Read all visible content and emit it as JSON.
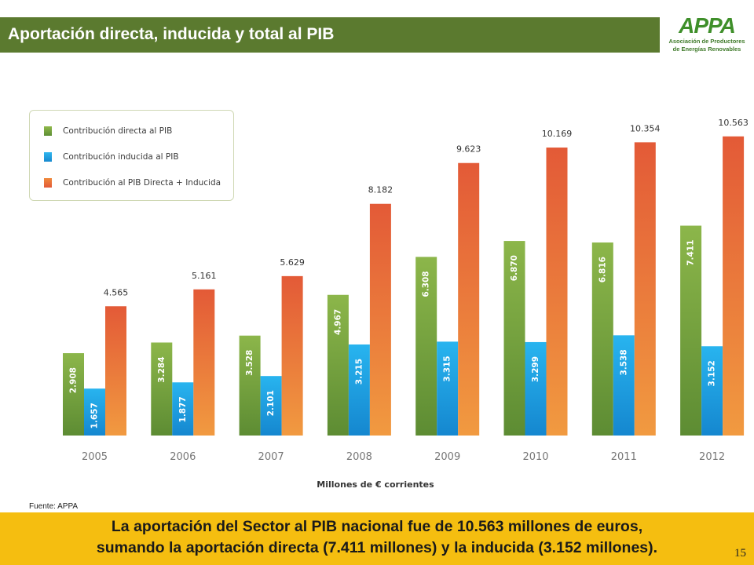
{
  "header": {
    "title": "Aportación directa, inducida y total al PIB"
  },
  "logo": {
    "mark": "APPA",
    "line1": "Asociación de Productores",
    "line2": "de Energías Renovables"
  },
  "colors": {
    "header_green": "#5b7a2f",
    "footer_yellow": "#f5be10",
    "series_direct": "#6e9a3a",
    "series_induced": "#1aa3e0",
    "series_total": "#e8653a"
  },
  "chart_data": {
    "type": "bar",
    "categories": [
      "2005",
      "2006",
      "2007",
      "2008",
      "2009",
      "2010",
      "2011",
      "2012"
    ],
    "series": [
      {
        "name": "Contribución directa al PIB",
        "values": [
          2908,
          3284,
          3528,
          4967,
          6308,
          6870,
          6816,
          7411
        ],
        "labels": [
          "2.908",
          "3.284",
          "3.528",
          "4.967",
          "6.308",
          "6.870",
          "6.816",
          "7.411"
        ]
      },
      {
        "name": "Contribución inducida al PIB",
        "values": [
          1657,
          1877,
          2101,
          3215,
          3315,
          3299,
          3538,
          3152
        ],
        "labels": [
          "1.657",
          "1.877",
          "2.101",
          "3.215",
          "3.315",
          "3.299",
          "3.538",
          "3.152"
        ]
      },
      {
        "name": "Contribución al PIB Directa + Inducida",
        "values": [
          4565,
          5161,
          5629,
          8182,
          9623,
          10169,
          10354,
          10563
        ],
        "labels": [
          "4.565",
          "5.161",
          "5.629",
          "8.182",
          "9.623",
          "10.169",
          "10.354",
          "10.563"
        ]
      }
    ],
    "xlabel": "Millones de € corrientes",
    "ylabel": "",
    "ylim": [
      0,
      11500
    ],
    "grid": false,
    "legend_position": "top-left"
  },
  "source": "Fuente: APPA",
  "footer": {
    "line1": "La aportación del Sector al PIB nacional fue de 10.563 millones de euros,",
    "line2": "sumando la aportación directa (7.411 millones) y la inducida (3.152 millones).",
    "page_number": "15"
  }
}
